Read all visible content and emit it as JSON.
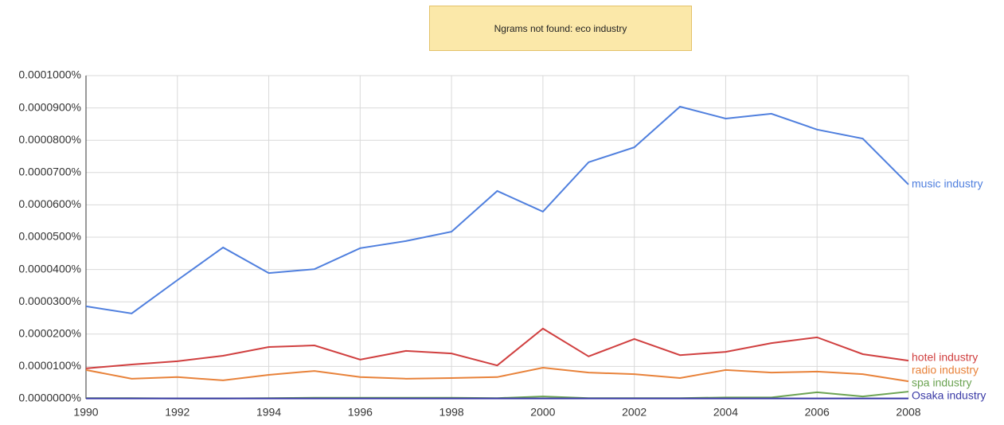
{
  "chart_data": {
    "type": "line",
    "notice": "Ngrams not found: eco industry",
    "x": [
      1990,
      1991,
      1992,
      1993,
      1994,
      1995,
      1996,
      1997,
      1998,
      1999,
      2000,
      2001,
      2002,
      2003,
      2004,
      2005,
      2006,
      2007,
      2008
    ],
    "xlim": [
      1990,
      2008
    ],
    "xticks": [
      1990,
      1992,
      1994,
      1996,
      1998,
      2000,
      2002,
      2004,
      2006,
      2008
    ],
    "ylim": [
      0,
      0.0001
    ],
    "yticks": [
      {
        "value": 0,
        "label": "0.0000000%"
      },
      {
        "value": 1e-05,
        "label": "0.0000100%"
      },
      {
        "value": 2e-05,
        "label": "0.0000200%"
      },
      {
        "value": 3e-05,
        "label": "0.0000300%"
      },
      {
        "value": 4e-05,
        "label": "0.0000400%"
      },
      {
        "value": 5e-05,
        "label": "0.0000500%"
      },
      {
        "value": 6e-05,
        "label": "0.0000600%"
      },
      {
        "value": 7e-05,
        "label": "0.0000700%"
      },
      {
        "value": 8e-05,
        "label": "0.0000800%"
      },
      {
        "value": 9e-05,
        "label": "0.0000900%"
      },
      {
        "value": 0.0001,
        "label": "0.0001000%"
      }
    ],
    "grid": true,
    "series": [
      {
        "name": "music industry",
        "color": "#4f7fde",
        "values": [
          2.86e-05,
          2.64e-05,
          3.67e-05,
          4.68e-05,
          3.89e-05,
          4.01e-05,
          4.66e-05,
          4.88e-05,
          5.17e-05,
          6.43e-05,
          5.79e-05,
          7.32e-05,
          7.78e-05,
          9.04e-05,
          8.67e-05,
          8.82e-05,
          8.33e-05,
          8.05e-05,
          6.63e-05
        ]
      },
      {
        "name": "hotel industry",
        "color": "#d03f3f",
        "values": [
          9.4e-06,
          1.06e-05,
          1.16e-05,
          1.33e-05,
          1.6e-05,
          1.65e-05,
          1.21e-05,
          1.48e-05,
          1.4e-05,
          1.03e-05,
          2.17e-05,
          1.31e-05,
          1.85e-05,
          1.35e-05,
          1.45e-05,
          1.72e-05,
          1.9e-05,
          1.38e-05,
          1.18e-05
        ]
      },
      {
        "name": "radio industry",
        "color": "#e8823a",
        "values": [
          8.9e-06,
          6.2e-06,
          6.7e-06,
          5.7e-06,
          7.4e-06,
          8.6e-06,
          6.7e-06,
          6.2e-06,
          6.4e-06,
          6.7e-06,
          9.6e-06,
          8.1e-06,
          7.6e-06,
          6.4e-06,
          8.9e-06,
          8.1e-06,
          8.4e-06,
          7.6e-06,
          5.4e-06
        ]
      },
      {
        "name": "spa industry",
        "color": "#6ba352",
        "values": [
          2e-07,
          2e-07,
          1e-07,
          1e-07,
          2e-07,
          3e-07,
          3e-07,
          3e-07,
          3e-07,
          2e-07,
          7e-07,
          2e-07,
          2e-07,
          2e-07,
          4e-07,
          4e-07,
          2e-06,
          7e-07,
          2.2e-06
        ]
      },
      {
        "name": "Osaka industry",
        "color": "#3a3aa6",
        "values": [
          1e-07,
          1e-07,
          1e-07,
          1e-07,
          1e-07,
          1e-07,
          1e-07,
          1e-07,
          1e-07,
          1e-07,
          1e-07,
          1e-07,
          1e-07,
          1e-07,
          1e-07,
          1e-07,
          1e-07,
          1e-07,
          1e-07
        ]
      }
    ]
  }
}
